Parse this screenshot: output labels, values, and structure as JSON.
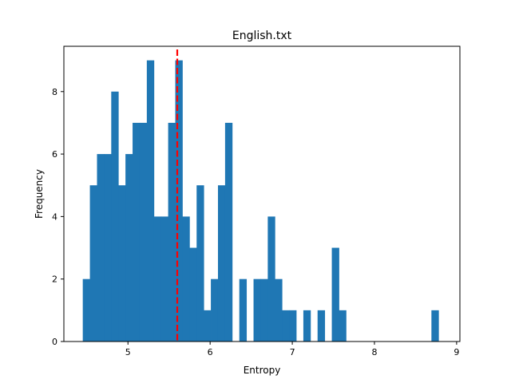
{
  "chart_data": {
    "type": "bar",
    "title": "English.txt",
    "xlabel": "Entropy",
    "ylabel": "Frequency",
    "xlim": [
      4.22,
      9.04
    ],
    "ylim": [
      0,
      9.45
    ],
    "xticks": [
      5,
      6,
      7,
      8,
      9
    ],
    "yticks": [
      0,
      2,
      4,
      6,
      8
    ],
    "bin_width": 0.0866,
    "bin_start": 4.45,
    "values": [
      2,
      5,
      6,
      6,
      8,
      5,
      6,
      7,
      7,
      9,
      4,
      4,
      7,
      9,
      4,
      3,
      5,
      1,
      2,
      5,
      7,
      0,
      2,
      0,
      2,
      2,
      4,
      2,
      1,
      1,
      0,
      1,
      0,
      1,
      0,
      3,
      1,
      0,
      0,
      0,
      0,
      0,
      0,
      0,
      0,
      0,
      0,
      0,
      0,
      1
    ],
    "bar_color": "#1f77b4",
    "mean_line": {
      "x": 5.6,
      "color": "#ff0000",
      "style": "dashed"
    },
    "grid": false,
    "legend": "none"
  }
}
